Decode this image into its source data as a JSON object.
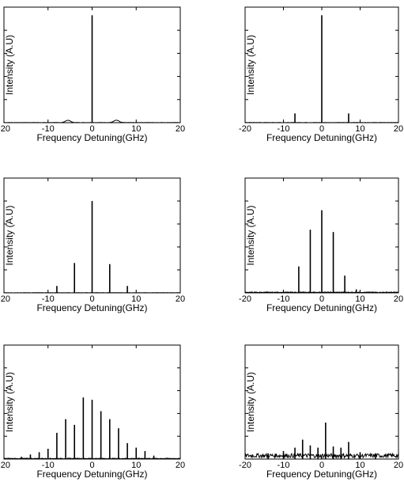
{
  "chart_data": [
    {
      "type": "line",
      "xlabel": "Frequency Detuning(GHz)",
      "ylabel": "Intensity (A.U)",
      "xlim": [
        -20,
        20
      ],
      "xticks": [
        -20,
        -10,
        0,
        10,
        20
      ],
      "xtick_labels": [
        "-20",
        "-10",
        "0",
        "10",
        "20"
      ],
      "grid": false,
      "peaks": [
        {
          "x": 0,
          "y": 0.93
        }
      ],
      "baseline": 0.0,
      "bumps": [
        {
          "x": -5.5,
          "y": 0.02
        },
        {
          "x": 5.5,
          "y": 0.02
        }
      ]
    },
    {
      "type": "line",
      "xlabel": "Frequency Detuning(GHz)",
      "ylabel": "Intensity (A.U)",
      "xlim": [
        -20,
        20
      ],
      "xticks": [
        -20,
        -10,
        0,
        10,
        20
      ],
      "xtick_labels": [
        "-20",
        "-10",
        "0",
        "10",
        "20"
      ],
      "grid": false,
      "peaks": [
        {
          "x": -7,
          "y": 0.08
        },
        {
          "x": 0,
          "y": 0.93
        },
        {
          "x": 7,
          "y": 0.08
        }
      ],
      "baseline": 0.0,
      "bumps": []
    },
    {
      "type": "line",
      "xlabel": "Frequency Detuning(GHz)",
      "ylabel": "Intensity (A.U)",
      "xlim": [
        -20,
        20
      ],
      "xticks": [
        -20,
        -10,
        0,
        10,
        20
      ],
      "xtick_labels": [
        "-20",
        "-10",
        "0",
        "10",
        "20"
      ],
      "grid": false,
      "peaks": [
        {
          "x": -8,
          "y": 0.06
        },
        {
          "x": -4,
          "y": 0.26
        },
        {
          "x": 0,
          "y": 0.8
        },
        {
          "x": 4,
          "y": 0.25
        },
        {
          "x": 8,
          "y": 0.06
        }
      ],
      "baseline": 0.0,
      "bumps": []
    },
    {
      "type": "line",
      "xlabel": "Frequency Detuning(GHz)",
      "ylabel": "Intensity (A.U)",
      "xlim": [
        -20,
        20
      ],
      "xticks": [
        -20,
        -10,
        0,
        10,
        20
      ],
      "xtick_labels": [
        "-20",
        "-10",
        "0",
        "10",
        "20"
      ],
      "grid": false,
      "peaks": [
        {
          "x": -6,
          "y": 0.23
        },
        {
          "x": -3,
          "y": 0.55
        },
        {
          "x": 0,
          "y": 0.72
        },
        {
          "x": 3,
          "y": 0.53
        },
        {
          "x": 6,
          "y": 0.15
        },
        {
          "x": 9,
          "y": 0.03
        }
      ],
      "baseline": 0.005,
      "bumps": []
    },
    {
      "type": "line",
      "xlabel": "Frequency Detuning(GHz)",
      "ylabel": "Intensity (A.U)",
      "xlim": [
        -20,
        20
      ],
      "xticks": [
        -20,
        -10,
        0,
        10,
        20
      ],
      "xtick_labels": [
        "-20",
        "-10",
        "0",
        "10",
        "20"
      ],
      "grid": false,
      "peaks": [
        {
          "x": -16,
          "y": 0.02
        },
        {
          "x": -14,
          "y": 0.04
        },
        {
          "x": -12,
          "y": 0.06
        },
        {
          "x": -10,
          "y": 0.09
        },
        {
          "x": -8,
          "y": 0.23
        },
        {
          "x": -6,
          "y": 0.35
        },
        {
          "x": -4,
          "y": 0.3
        },
        {
          "x": -2,
          "y": 0.54
        },
        {
          "x": 0,
          "y": 0.52
        },
        {
          "x": 2,
          "y": 0.42
        },
        {
          "x": 4,
          "y": 0.35
        },
        {
          "x": 6,
          "y": 0.27
        },
        {
          "x": 8,
          "y": 0.14
        },
        {
          "x": 10,
          "y": 0.1
        },
        {
          "x": 12,
          "y": 0.07
        },
        {
          "x": 14,
          "y": 0.03
        }
      ],
      "baseline": 0.005,
      "bumps": []
    },
    {
      "type": "line",
      "xlabel": "Frequency Detuning(GHz)",
      "ylabel": "Intensity (A.U)",
      "xlim": [
        -20,
        20
      ],
      "xticks": [
        -20,
        -10,
        0,
        10,
        20
      ],
      "xtick_labels": [
        "-20",
        "-10",
        "0",
        "10",
        "20"
      ],
      "grid": false,
      "peaks": [
        {
          "x": -14,
          "y": 0.05
        },
        {
          "x": -10,
          "y": 0.07
        },
        {
          "x": -7,
          "y": 0.1
        },
        {
          "x": -5,
          "y": 0.17
        },
        {
          "x": -3,
          "y": 0.12
        },
        {
          "x": -1,
          "y": 0.1
        },
        {
          "x": 1,
          "y": 0.32
        },
        {
          "x": 3,
          "y": 0.11
        },
        {
          "x": 5,
          "y": 0.1
        },
        {
          "x": 7,
          "y": 0.15
        },
        {
          "x": 10,
          "y": 0.06
        },
        {
          "x": 14,
          "y": 0.05
        }
      ],
      "baseline": 0.03,
      "bumps": []
    }
  ]
}
